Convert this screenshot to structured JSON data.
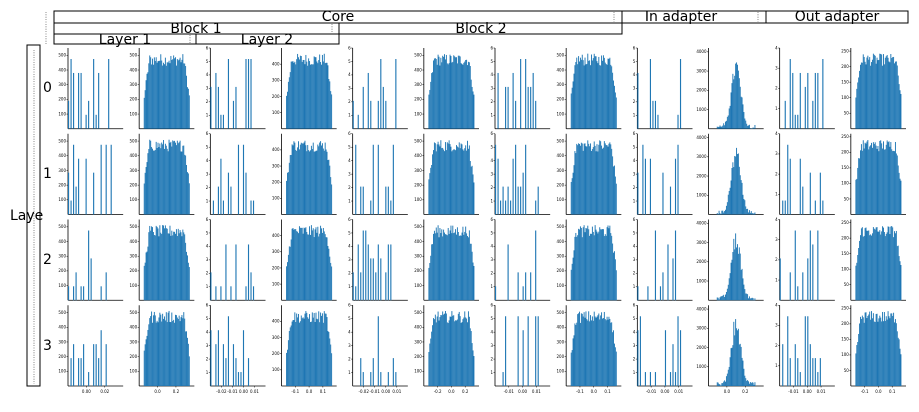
{
  "figure": {
    "bar_color": "#1f77b4",
    "headers": {
      "core": "Core",
      "block1": "Block 1",
      "block2": "Block 2",
      "layer1": "Layer 1",
      "layer2": "Layer 2",
      "in_adapter": "In adapter",
      "out_adapter": "Out adapter"
    },
    "row_axis_label": "Laye",
    "row_labels": [
      "0",
      "1",
      "2",
      "3"
    ]
  },
  "chart_data": {
    "type": "bar",
    "description_rows": [
      "0",
      "1",
      "2",
      "3"
    ],
    "panels_per_row": 12,
    "columns": [
      {
        "kind": "sparse",
        "ylim": [
          0,
          550
        ],
        "yticks": [
          100,
          200,
          300,
          400,
          500
        ],
        "xtick_labels": [
          "0.00",
          "0.02"
        ]
      },
      {
        "kind": "dense",
        "ylim": [
          0,
          550
        ],
        "yticks": [
          100,
          200,
          300,
          400,
          500
        ],
        "xtick_labels": [
          "0.0",
          "0.2"
        ]
      },
      {
        "kind": "sparse",
        "ylim": [
          0,
          6
        ],
        "yticks": [
          1,
          2,
          3,
          4,
          5,
          6
        ],
        "xtick_labels": [
          "-0.02",
          "-0.01",
          "0.00",
          "0.01"
        ]
      },
      {
        "kind": "dense",
        "ylim": [
          0,
          500
        ],
        "yticks": [
          100,
          200,
          300,
          400
        ],
        "xtick_labels": [
          "-0.1",
          "0.0",
          "0.1"
        ]
      },
      {
        "kind": "sparse",
        "ylim": [
          0,
          6
        ],
        "yticks": [
          1,
          2,
          3,
          4,
          5,
          6
        ],
        "xtick_labels": [
          "-0.02",
          "-0.01",
          "0.00",
          "0.01"
        ]
      },
      {
        "kind": "dense",
        "ylim": [
          0,
          550
        ],
        "yticks": [
          100,
          200,
          300,
          400,
          500
        ],
        "xtick_labels": [
          "-0.2",
          "0.0",
          "0.2"
        ]
      },
      {
        "kind": "sparse",
        "ylim": [
          0,
          6
        ],
        "yticks": [
          1,
          2,
          3,
          4,
          5,
          6
        ],
        "xtick_labels": [
          "-0.01",
          "0.00",
          "0.01"
        ]
      },
      {
        "kind": "dense",
        "ylim": [
          0,
          550
        ],
        "yticks": [
          100,
          200,
          300,
          400,
          500
        ],
        "xtick_labels": [
          "-0.1",
          "0.0",
          "0.1"
        ]
      },
      {
        "kind": "sparse",
        "ylim": [
          0,
          6
        ],
        "yticks": [
          1,
          2,
          3,
          4,
          5,
          6
        ],
        "xtick_labels": [
          "-0.01",
          "0.00",
          "0.01"
        ]
      },
      {
        "kind": "peak",
        "ylim": [
          0,
          4200
        ],
        "yticks": [
          1000,
          2000,
          3000,
          4000
        ],
        "xtick_labels": [
          "0.0",
          "0.2"
        ]
      },
      {
        "kind": "sparse",
        "ylim": [
          0,
          4
        ],
        "yticks": [
          1,
          2,
          3,
          4
        ],
        "xtick_labels": [
          "-0.01",
          "0.00",
          "0.01"
        ]
      },
      {
        "kind": "dense",
        "ylim": [
          0,
          260
        ],
        "yticks": [
          50,
          100,
          150,
          200,
          250
        ],
        "xtick_labels": [
          "-0.1",
          "0.0",
          "0.1"
        ]
      }
    ]
  }
}
